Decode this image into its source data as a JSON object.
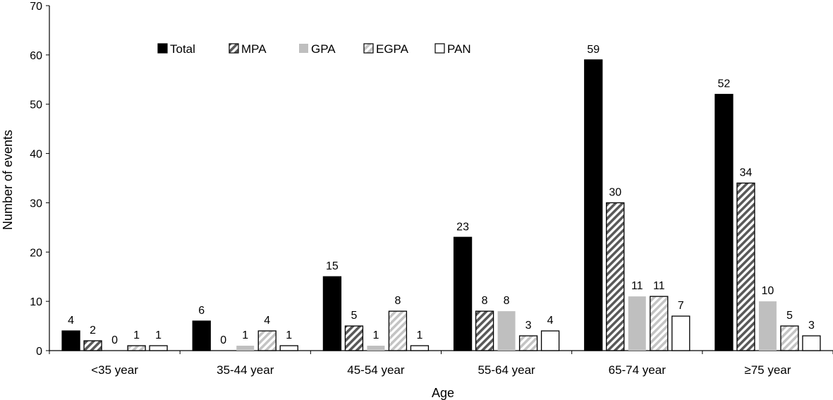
{
  "chart_data": {
    "type": "bar",
    "title": "",
    "xlabel": "Age",
    "ylabel": "Number of events",
    "ylim": [
      0,
      70
    ],
    "yticks": [
      0,
      10,
      20,
      30,
      40,
      50,
      60,
      70
    ],
    "grid": false,
    "legend_position": "top-left",
    "categories": [
      "<35 year",
      "35-44 year",
      "45-54 year",
      "55-64 year",
      "65-74 year",
      "≥75 year"
    ],
    "series": [
      {
        "name": "Total",
        "style": "solid-black",
        "color": "#000000",
        "values": [
          4,
          6,
          15,
          23,
          59,
          52
        ]
      },
      {
        "name": "MPA",
        "style": "dark-hatch",
        "color": "#595959",
        "values": [
          2,
          0,
          5,
          8,
          30,
          34
        ]
      },
      {
        "name": "GPA",
        "style": "solid-gray",
        "color": "#bfbfbf",
        "values": [
          0,
          1,
          1,
          8,
          11,
          10
        ]
      },
      {
        "name": "EGPA",
        "style": "light-hatch",
        "color": "#bfbfbf",
        "values": [
          1,
          4,
          8,
          3,
          11,
          5
        ]
      },
      {
        "name": "PAN",
        "style": "white",
        "color": "#ffffff",
        "values": [
          1,
          1,
          1,
          4,
          7,
          3
        ]
      }
    ]
  }
}
